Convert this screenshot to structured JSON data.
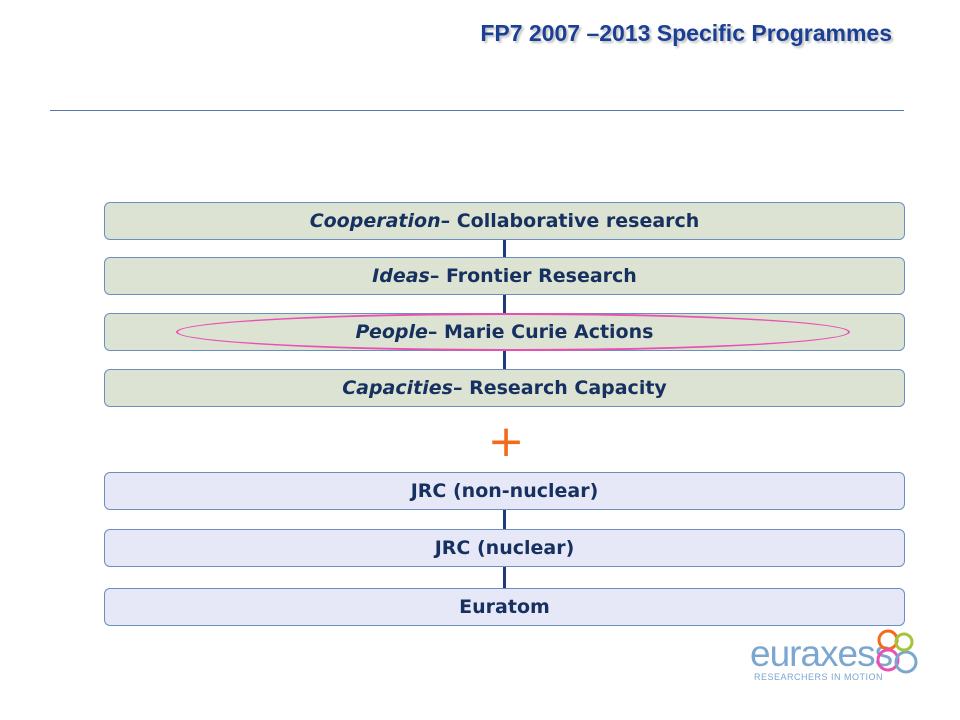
{
  "slide": {
    "title": "FP7 2007 –2013 Specific Programmes",
    "plus_symbol": "+"
  },
  "programmes": [
    {
      "emph": "Cooperation",
      "rest": " – Collaborative research"
    },
    {
      "emph": "Ideas",
      "rest": " – Frontier Research"
    },
    {
      "emph": "People",
      "rest": " – Marie Curie Actions"
    },
    {
      "emph": "Capacities",
      "rest": " – Research Capacity"
    }
  ],
  "additional": [
    {
      "label": "JRC (non-nuclear)"
    },
    {
      "label": "JRC (nuclear)"
    },
    {
      "label": "Euratom"
    }
  ],
  "logo": {
    "wordmark": "euraxess",
    "tagline": "RESEARCHERS IN MOTION",
    "colors": [
      "#f26a1b",
      "#e850b4",
      "#7ba6cf",
      "#a6c43a"
    ]
  },
  "colors": {
    "title": "#1a3f95",
    "bar_green": "#dde3d3",
    "bar_blue": "#e7e8f7",
    "highlight_ellipse": "#e850b4",
    "plus": "#f26a1b"
  }
}
